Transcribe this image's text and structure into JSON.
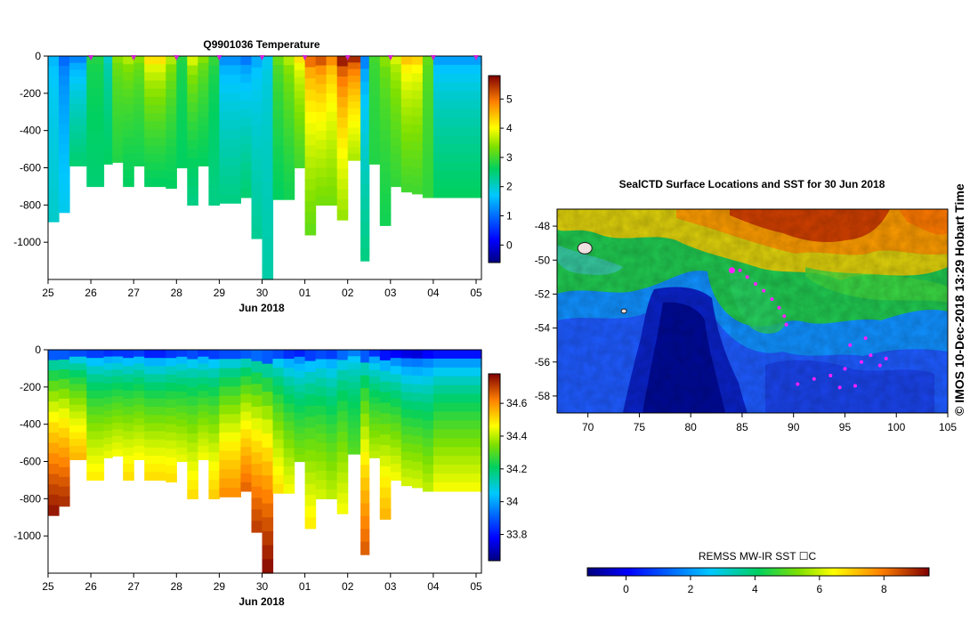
{
  "chart_data": [
    {
      "type": "heatmap",
      "title": "Q9901036  Temperature",
      "xlabel": "Jun 2018",
      "x_ticks": [
        "25",
        "26",
        "27",
        "28",
        "29",
        "30",
        "01",
        "02",
        "03",
        "04",
        "05"
      ],
      "y_ticks": [
        "0",
        "-200",
        "-400",
        "-600",
        "-800",
        "-1000"
      ],
      "ylim": [
        -1200,
        0
      ],
      "colorbar_ticks": [
        "0",
        "1",
        "2",
        "3",
        "4",
        "5"
      ],
      "colorbar_range": [
        -0.6,
        5.8
      ],
      "profiles": [
        {
          "day": 0.0,
          "depth": -890,
          "surface": 1.6,
          "deep": 2.0
        },
        {
          "day": 0.25,
          "depth": -840,
          "surface": 1.0,
          "deep": 1.8
        },
        {
          "day": 0.5,
          "depth": -590,
          "surface": 1.2,
          "deep": 2.5
        },
        {
          "day": 0.9,
          "depth": -700,
          "surface": 2.8,
          "deep": 2.5
        },
        {
          "day": 1.3,
          "depth": -580,
          "surface": 2.0,
          "deep": 2.6
        },
        {
          "day": 1.5,
          "depth": -570,
          "surface": 3.4,
          "deep": 2.8
        },
        {
          "day": 1.75,
          "depth": -700,
          "surface": 3.6,
          "deep": 2.6
        },
        {
          "day": 2.0,
          "depth": -590,
          "surface": 3.4,
          "deep": 2.7
        },
        {
          "day": 2.25,
          "depth": -700,
          "surface": 4.2,
          "deep": 2.6
        },
        {
          "day": 2.75,
          "depth": -710,
          "surface": 3.6,
          "deep": 2.6
        },
        {
          "day": 3.0,
          "depth": -600,
          "surface": 2.8,
          "deep": 2.6
        },
        {
          "day": 3.25,
          "depth": -800,
          "surface": 3.8,
          "deep": 2.4
        },
        {
          "day": 3.5,
          "depth": -590,
          "surface": 3.4,
          "deep": 2.6
        },
        {
          "day": 3.75,
          "depth": -800,
          "surface": 2.9,
          "deep": 2.4
        },
        {
          "day": 4.0,
          "depth": -790,
          "surface": 1.3,
          "deep": 2.4
        },
        {
          "day": 4.5,
          "depth": -760,
          "surface": 1.1,
          "deep": 2.5
        },
        {
          "day": 4.75,
          "depth": -980,
          "surface": 1.5,
          "deep": 2.3
        },
        {
          "day": 5.0,
          "depth": -1200,
          "surface": 1.8,
          "deep": 2.2
        },
        {
          "day": 5.25,
          "depth": -770,
          "surface": 3.2,
          "deep": 2.6
        },
        {
          "day": 5.5,
          "depth": -770,
          "surface": 3.6,
          "deep": 2.7
        },
        {
          "day": 5.75,
          "depth": -600,
          "surface": 4.2,
          "deep": 3.0
        },
        {
          "day": 6.0,
          "depth": -960,
          "surface": 5.0,
          "deep": 3.2
        },
        {
          "day": 6.25,
          "depth": -800,
          "surface": 5.2,
          "deep": 3.3
        },
        {
          "day": 6.5,
          "depth": -800,
          "surface": 4.8,
          "deep": 3.3
        },
        {
          "day": 6.75,
          "depth": -880,
          "surface": 5.6,
          "deep": 3.5
        },
        {
          "day": 7.0,
          "depth": -560,
          "surface": 5.5,
          "deep": 3.6
        },
        {
          "day": 7.3,
          "depth": -1100,
          "surface": 1.2,
          "deep": 2.4
        },
        {
          "day": 7.5,
          "depth": -580,
          "surface": 3.0,
          "deep": 2.8
        },
        {
          "day": 7.75,
          "depth": -910,
          "surface": 3.4,
          "deep": 2.7
        },
        {
          "day": 8.0,
          "depth": -700,
          "surface": 3.8,
          "deep": 2.9
        },
        {
          "day": 8.25,
          "depth": -730,
          "surface": 4.4,
          "deep": 3.0
        },
        {
          "day": 8.5,
          "depth": -740,
          "surface": 4.3,
          "deep": 3.0
        },
        {
          "day": 8.75,
          "depth": -760,
          "surface": 3.2,
          "deep": 2.9
        },
        {
          "day": 9.0,
          "depth": -760,
          "surface": 1.4,
          "deep": 2.6
        }
      ]
    },
    {
      "type": "heatmap",
      "title": "",
      "xlabel": "Jun 2018",
      "x_ticks": [
        "25",
        "26",
        "27",
        "28",
        "29",
        "30",
        "01",
        "02",
        "03",
        "04",
        "05"
      ],
      "y_ticks": [
        "0",
        "-200",
        "-400",
        "-600",
        "-800",
        "-1000"
      ],
      "ylim": [
        -1200,
        0
      ],
      "colorbar_ticks": [
        "33.8",
        "34",
        "34.2",
        "34.4",
        "34.6"
      ],
      "colorbar_range": [
        33.64,
        34.78
      ],
      "profiles": [
        {
          "day": 0.0,
          "depth": -890,
          "surface": 33.9,
          "deep": 34.75
        },
        {
          "day": 0.25,
          "depth": -840,
          "surface": 33.9,
          "deep": 34.72
        },
        {
          "day": 0.5,
          "depth": -590,
          "surface": 33.88,
          "deep": 34.55
        },
        {
          "day": 0.9,
          "depth": -700,
          "surface": 33.86,
          "deep": 34.48
        },
        {
          "day": 1.3,
          "depth": -580,
          "surface": 33.84,
          "deep": 34.44
        },
        {
          "day": 1.5,
          "depth": -570,
          "surface": 33.85,
          "deep": 34.45
        },
        {
          "day": 1.75,
          "depth": -700,
          "surface": 33.85,
          "deep": 34.5
        },
        {
          "day": 2.0,
          "depth": -590,
          "surface": 33.86,
          "deep": 34.46
        },
        {
          "day": 2.25,
          "depth": -700,
          "surface": 33.82,
          "deep": 34.5
        },
        {
          "day": 2.75,
          "depth": -710,
          "surface": 33.85,
          "deep": 34.5
        },
        {
          "day": 3.0,
          "depth": -600,
          "surface": 33.86,
          "deep": 34.44
        },
        {
          "day": 3.25,
          "depth": -800,
          "surface": 33.88,
          "deep": 34.5
        },
        {
          "day": 3.5,
          "depth": -590,
          "surface": 33.85,
          "deep": 34.45
        },
        {
          "day": 3.75,
          "depth": -800,
          "surface": 33.86,
          "deep": 34.52
        },
        {
          "day": 4.0,
          "depth": -790,
          "surface": 33.88,
          "deep": 34.6
        },
        {
          "day": 4.5,
          "depth": -760,
          "surface": 33.9,
          "deep": 34.65
        },
        {
          "day": 4.75,
          "depth": -980,
          "surface": 33.92,
          "deep": 34.7
        },
        {
          "day": 5.0,
          "depth": -1200,
          "surface": 33.9,
          "deep": 34.76
        },
        {
          "day": 5.25,
          "depth": -770,
          "surface": 33.88,
          "deep": 34.5
        },
        {
          "day": 5.5,
          "depth": -770,
          "surface": 33.84,
          "deep": 34.45
        },
        {
          "day": 5.75,
          "depth": -600,
          "surface": 33.82,
          "deep": 34.35
        },
        {
          "day": 6.0,
          "depth": -960,
          "surface": 33.86,
          "deep": 34.48
        },
        {
          "day": 6.25,
          "depth": -800,
          "surface": 33.88,
          "deep": 34.42
        },
        {
          "day": 6.5,
          "depth": -800,
          "surface": 33.86,
          "deep": 34.4
        },
        {
          "day": 6.75,
          "depth": -880,
          "surface": 33.92,
          "deep": 34.45
        },
        {
          "day": 7.0,
          "depth": -560,
          "surface": 33.95,
          "deep": 34.3
        },
        {
          "day": 7.3,
          "depth": -1100,
          "surface": 33.9,
          "deep": 34.66
        },
        {
          "day": 7.5,
          "depth": -580,
          "surface": 33.84,
          "deep": 34.4
        },
        {
          "day": 7.75,
          "depth": -910,
          "surface": 33.8,
          "deep": 34.55
        },
        {
          "day": 8.0,
          "depth": -700,
          "surface": 33.78,
          "deep": 34.45
        },
        {
          "day": 8.25,
          "depth": -730,
          "surface": 33.75,
          "deep": 34.42
        },
        {
          "day": 8.5,
          "depth": -740,
          "surface": 33.74,
          "deep": 34.42
        },
        {
          "day": 8.75,
          "depth": -760,
          "surface": 33.78,
          "deep": 34.4
        },
        {
          "day": 9.0,
          "depth": -760,
          "surface": 33.8,
          "deep": 34.45
        }
      ]
    },
    {
      "type": "heatmap",
      "title": "SealCTD Surface Locations and SST for 30 Jun 2018",
      "xlabel": "",
      "x_ticks": [
        "70",
        "75",
        "80",
        "85",
        "90",
        "95",
        "100",
        "105"
      ],
      "y_ticks": [
        "-48",
        "-50",
        "-52",
        "-54",
        "-56",
        "-58"
      ],
      "xlim": [
        67,
        105
      ],
      "ylim": [
        -59,
        -47
      ],
      "colorbar_label": "REMSS MW-IR SST ☐C",
      "colorbar_ticks": [
        "0",
        "2",
        "4",
        "6",
        "8"
      ],
      "colorbar_range": [
        -1.2,
        9.4
      ],
      "side_label": "©  IMOS 10-Dec-2018 13:29 Hobart Time",
      "track": [
        {
          "lon": 84.0,
          "lat": -50.6
        },
        {
          "lon": 84.8,
          "lat": -50.6
        },
        {
          "lon": 85.5,
          "lat": -51.0
        },
        {
          "lon": 86.3,
          "lat": -51.4
        },
        {
          "lon": 87.1,
          "lat": -51.8
        },
        {
          "lon": 87.9,
          "lat": -52.3
        },
        {
          "lon": 88.6,
          "lat": -52.8
        },
        {
          "lon": 89.1,
          "lat": -53.3
        },
        {
          "lon": 89.3,
          "lat": -53.8
        },
        {
          "lon": 90.4,
          "lat": -57.3
        },
        {
          "lon": 92.0,
          "lat": -57.0
        },
        {
          "lon": 93.6,
          "lat": -56.8
        },
        {
          "lon": 95.0,
          "lat": -56.4
        },
        {
          "lon": 96.0,
          "lat": -57.4
        },
        {
          "lon": 96.6,
          "lat": -56.0
        },
        {
          "lon": 97.5,
          "lat": -55.6
        },
        {
          "lon": 98.4,
          "lat": -56.2
        },
        {
          "lon": 99.0,
          "lat": -55.8
        },
        {
          "lon": 95.5,
          "lat": -55.0
        },
        {
          "lon": 97.0,
          "lat": -54.6
        },
        {
          "lon": 94.5,
          "lat": -57.5
        }
      ],
      "islands": [
        {
          "lon": 69.7,
          "lat": -49.3
        },
        {
          "lon": 73.5,
          "lat": -53.0
        }
      ]
    }
  ]
}
